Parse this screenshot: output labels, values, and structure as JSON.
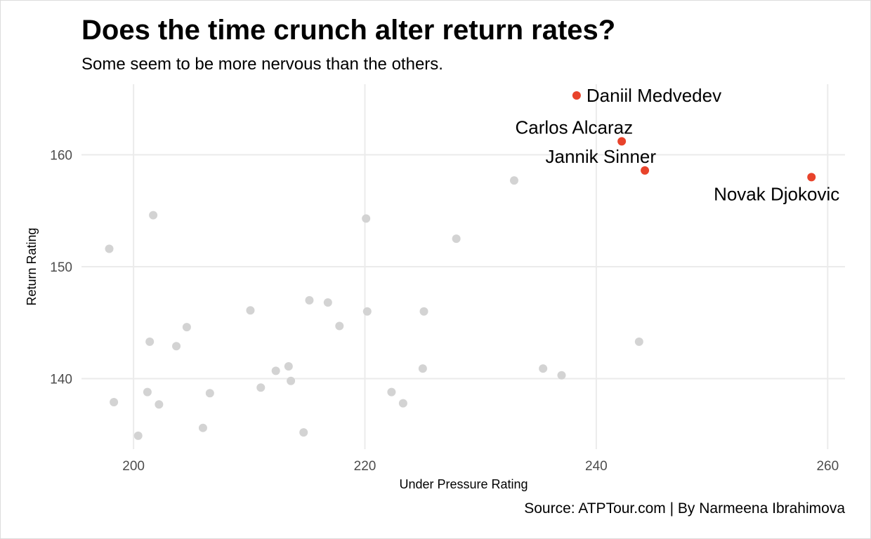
{
  "chart_data": {
    "type": "scatter",
    "title": "Does the time crunch alter return rates?",
    "subtitle": "Some seem to be more nervous than the others.",
    "caption": "Source: ATPTour.com | By Narmeena Ibrahimova",
    "xlabel": "Under Pressure Rating",
    "ylabel": "Return Rating",
    "xlim": [
      195.5,
      261.5
    ],
    "ylim": [
      133.7,
      166.3
    ],
    "x_ticks": [
      200,
      220,
      240,
      260
    ],
    "y_ticks": [
      140,
      150,
      160
    ],
    "grid": true,
    "legend": "none",
    "colors": {
      "highlight": "#e8432b",
      "background": "#d3d3d3",
      "grid": "#ebebeb"
    },
    "highlighted": [
      {
        "name": "Daniil Medvedev",
        "x": 238.3,
        "y": 165.3,
        "label_pos": "right"
      },
      {
        "name": "Carlos Alcaraz",
        "x": 242.2,
        "y": 161.2,
        "label_pos": "above-left"
      },
      {
        "name": "Jannik Sinner",
        "x": 244.2,
        "y": 158.6,
        "label_pos": "above-left"
      },
      {
        "name": "Novak Djokovic",
        "x": 258.6,
        "y": 158.0,
        "label_pos": "below-left"
      }
    ],
    "others": [
      {
        "x": 197.9,
        "y": 151.6
      },
      {
        "x": 198.3,
        "y": 137.9
      },
      {
        "x": 200.4,
        "y": 134.9
      },
      {
        "x": 201.2,
        "y": 138.8
      },
      {
        "x": 201.4,
        "y": 143.3
      },
      {
        "x": 201.7,
        "y": 154.6
      },
      {
        "x": 202.2,
        "y": 137.7
      },
      {
        "x": 203.7,
        "y": 142.9
      },
      {
        "x": 204.6,
        "y": 144.6
      },
      {
        "x": 206.0,
        "y": 135.6
      },
      {
        "x": 206.6,
        "y": 138.7
      },
      {
        "x": 210.1,
        "y": 146.1
      },
      {
        "x": 211.0,
        "y": 139.2
      },
      {
        "x": 212.3,
        "y": 140.7
      },
      {
        "x": 213.4,
        "y": 141.1
      },
      {
        "x": 213.6,
        "y": 139.8
      },
      {
        "x": 214.7,
        "y": 135.2
      },
      {
        "x": 215.2,
        "y": 147.0
      },
      {
        "x": 216.8,
        "y": 146.8
      },
      {
        "x": 217.8,
        "y": 144.7
      },
      {
        "x": 220.1,
        "y": 154.3
      },
      {
        "x": 220.2,
        "y": 146.0
      },
      {
        "x": 222.3,
        "y": 138.8
      },
      {
        "x": 223.3,
        "y": 137.8
      },
      {
        "x": 225.0,
        "y": 140.9
      },
      {
        "x": 225.1,
        "y": 146.0
      },
      {
        "x": 227.9,
        "y": 152.5
      },
      {
        "x": 232.9,
        "y": 157.7
      },
      {
        "x": 235.4,
        "y": 140.9
      },
      {
        "x": 237.0,
        "y": 140.3
      },
      {
        "x": 243.7,
        "y": 143.3
      }
    ]
  }
}
